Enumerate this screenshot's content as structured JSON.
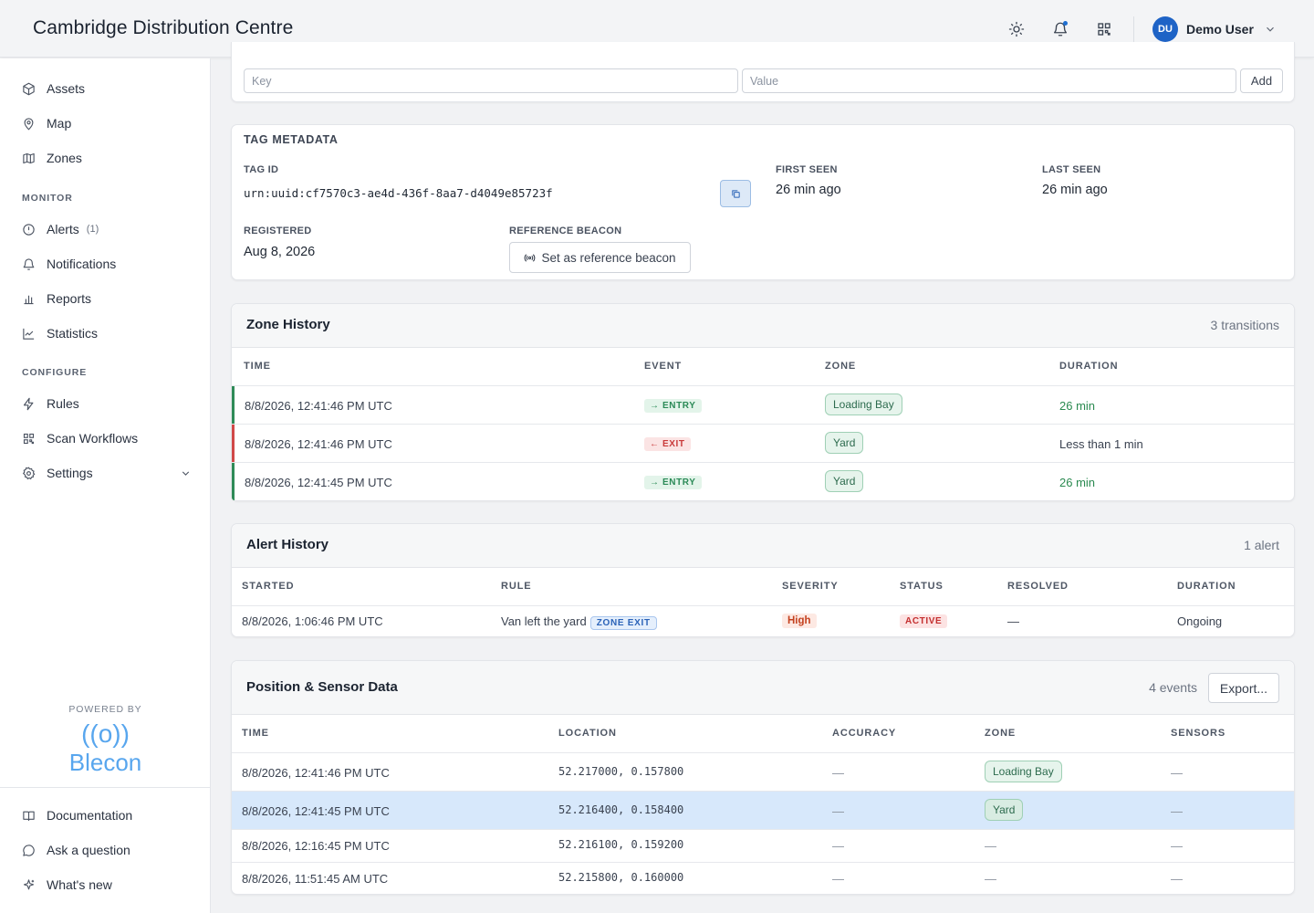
{
  "header": {
    "title": "Cambridge Distribution Centre",
    "user": {
      "initials": "DU",
      "name": "Demo User"
    },
    "icons": [
      "sun-icon",
      "bell-icon",
      "qr-code-icon",
      "chevron-down-icon"
    ]
  },
  "sidebar": {
    "items_top": [
      {
        "label": "Assets",
        "icon": "cube-icon"
      },
      {
        "label": "Map",
        "icon": "map-pin-icon"
      },
      {
        "label": "Zones",
        "icon": "map-icon"
      }
    ],
    "monitor_heading": "MONITOR",
    "items_monitor": [
      {
        "label": "Alerts",
        "icon": "alert-circle-icon",
        "count": "(1)"
      },
      {
        "label": "Notifications",
        "icon": "bell-icon"
      },
      {
        "label": "Reports",
        "icon": "bar-chart-icon"
      },
      {
        "label": "Statistics",
        "icon": "line-chart-icon"
      }
    ],
    "configure_heading": "CONFIGURE",
    "items_configure": [
      {
        "label": "Rules",
        "icon": "bolt-icon"
      },
      {
        "label": "Scan Workflows",
        "icon": "qr-code-icon"
      },
      {
        "label": "Settings",
        "icon": "gear-icon"
      }
    ],
    "powered_by": "POWERED BY",
    "brand": {
      "waves": "((o))",
      "name": "Blecon",
      "color": "#58a6ee"
    },
    "items_bottom": [
      {
        "label": "Documentation",
        "icon": "book-icon"
      },
      {
        "label": "Ask a question",
        "icon": "chat-bubble-icon"
      },
      {
        "label": "What's new",
        "icon": "sparkle-icon"
      }
    ]
  },
  "kv_form": {
    "key_placeholder": "Key",
    "value_placeholder": "Value",
    "add_label": "Add"
  },
  "tag_metadata": {
    "heading": "TAG METADATA",
    "tag_id_label": "TAG ID",
    "tag_id": "urn:uuid:cf7570c3-ae4d-436f-8aa7-d4049e85723f",
    "first_seen_label": "FIRST SEEN",
    "first_seen": "26 min ago",
    "last_seen_label": "LAST SEEN",
    "last_seen": "26 min ago",
    "registered_label": "REGISTERED",
    "registered": "Aug 8, 2026",
    "reference_label": "REFERENCE BEACON",
    "reference_button": "Set as reference beacon"
  },
  "zone_history": {
    "title": "Zone History",
    "count": "3 transitions",
    "columns": [
      "TIME",
      "EVENT",
      "ZONE",
      "DURATION"
    ],
    "rows": [
      {
        "time": "8/8/2026, 12:41:46 PM UTC",
        "event": "→ ENTRY",
        "type": "entry",
        "zone": "Loading Bay",
        "duration": "26 min"
      },
      {
        "time": "8/8/2026, 12:41:46 PM UTC",
        "event": "← EXIT",
        "type": "exit",
        "zone": "Yard",
        "duration": "Less than 1 min"
      },
      {
        "time": "8/8/2026, 12:41:45 PM UTC",
        "event": "→ ENTRY",
        "type": "entry",
        "zone": "Yard",
        "duration": "26 min"
      }
    ]
  },
  "alert_history": {
    "title": "Alert History",
    "count": "1 alert",
    "columns": [
      "STARTED",
      "RULE",
      "SEVERITY",
      "STATUS",
      "RESOLVED",
      "DURATION"
    ],
    "rows": [
      {
        "started": "8/8/2026, 1:06:46 PM UTC",
        "rule": "Van left the yard",
        "rule_tag": "ZONE EXIT",
        "severity": "High",
        "status": "ACTIVE",
        "resolved": "—",
        "duration": "Ongoing"
      }
    ]
  },
  "position_data": {
    "title": "Position & Sensor Data",
    "count": "4 events",
    "export_label": "Export...",
    "columns": [
      "TIME",
      "LOCATION",
      "ACCURACY",
      "ZONE",
      "SENSORS"
    ],
    "rows": [
      {
        "time": "8/8/2026, 12:41:46 PM UTC",
        "location": "52.217000, 0.157800",
        "accuracy": "—",
        "zone": "Loading Bay",
        "sensors": "—"
      },
      {
        "time": "8/8/2026, 12:41:45 PM UTC",
        "location": "52.216400, 0.158400",
        "accuracy": "—",
        "zone": "Yard",
        "sensors": "—",
        "selected": true
      },
      {
        "time": "8/8/2026, 12:16:45 PM UTC",
        "location": "52.216100, 0.159200",
        "accuracy": "—",
        "zone": "—",
        "sensors": "—"
      },
      {
        "time": "8/8/2026, 11:51:45 AM UTC",
        "location": "52.215800, 0.160000",
        "accuracy": "—",
        "zone": "—",
        "sensors": "—"
      }
    ]
  }
}
